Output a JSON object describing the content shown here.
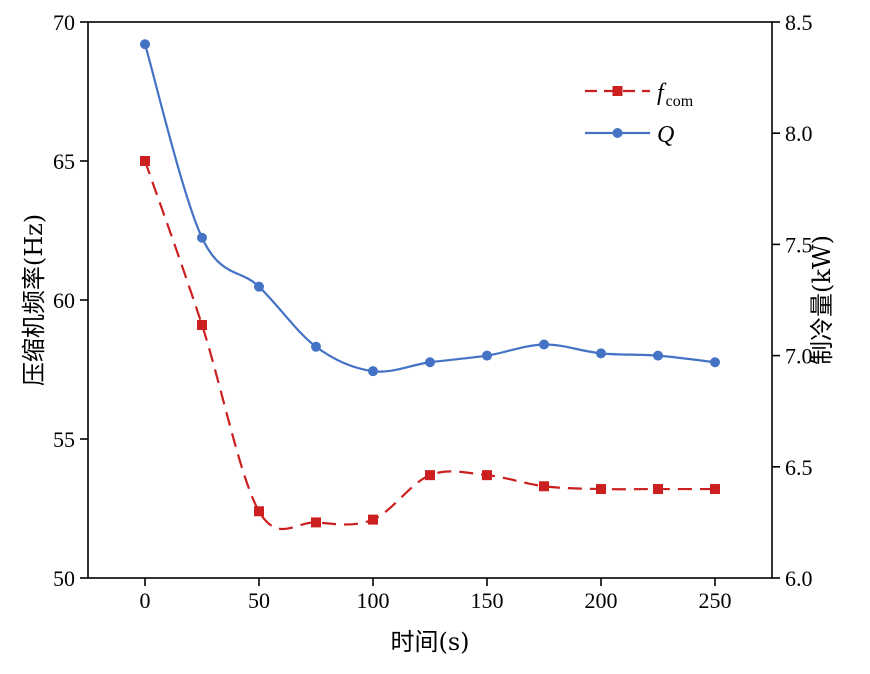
{
  "chart_data": {
    "type": "line",
    "xlabel": "时间(s)",
    "ylabel_left": "压缩机频率(Hz)",
    "ylabel_right": "制冷量(kW)",
    "xlim": [
      -25,
      275
    ],
    "ylim_left": [
      50,
      70
    ],
    "ylim_right": [
      6.0,
      8.5
    ],
    "x_ticks": [
      0,
      50,
      100,
      150,
      200,
      250
    ],
    "y_ticks_left": [
      50,
      55,
      60,
      65,
      70
    ],
    "y_ticks_right": [
      6.0,
      6.5,
      7.0,
      7.5,
      8.0,
      8.5
    ],
    "x_tick_labels": [
      "0",
      "50",
      "100",
      "150",
      "200",
      "250"
    ],
    "y_tick_labels_left": [
      "50",
      "55",
      "60",
      "65",
      "70"
    ],
    "y_tick_labels_right": [
      "6.0",
      "6.5",
      "7.0",
      "7.5",
      "8.0",
      "8.5"
    ],
    "grid": false,
    "legend_position": "top-right",
    "x": [
      0,
      25,
      50,
      75,
      100,
      125,
      150,
      175,
      200,
      225,
      250
    ],
    "series": [
      {
        "name": "f",
        "name_sub": "com",
        "axis": "left",
        "color": "#cc1f1f",
        "line_style": "dashed",
        "marker": "square",
        "values": [
          65.0,
          59.1,
          52.4,
          52.0,
          52.1,
          53.7,
          53.7,
          53.3,
          53.2,
          53.2,
          53.2
        ]
      },
      {
        "name": "Q",
        "name_sub": "",
        "axis": "right",
        "color": "#4472c4",
        "line_style": "solid",
        "marker": "circle",
        "values": [
          8.4,
          7.53,
          7.31,
          7.04,
          6.93,
          6.97,
          7.0,
          7.05,
          7.01,
          7.0,
          6.97
        ]
      }
    ]
  }
}
